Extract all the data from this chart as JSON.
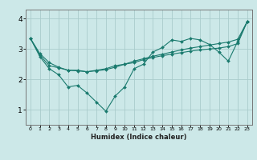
{
  "title": "",
  "xlabel": "Humidex (Indice chaleur)",
  "bg_color": "#cce8e8",
  "line_color": "#1a7a6e",
  "grid_color": "#aacccc",
  "x_data": [
    0,
    1,
    2,
    3,
    4,
    5,
    6,
    7,
    8,
    9,
    10,
    11,
    12,
    13,
    14,
    15,
    16,
    17,
    18,
    19,
    20,
    21,
    22,
    23
  ],
  "line1": [
    3.35,
    2.75,
    2.35,
    2.15,
    1.75,
    1.8,
    1.55,
    1.25,
    0.95,
    1.45,
    1.75,
    2.35,
    2.5,
    2.9,
    3.05,
    3.3,
    3.25,
    3.35,
    3.3,
    3.15,
    2.9,
    2.6,
    3.25,
    3.9
  ],
  "line2": [
    3.35,
    2.85,
    2.55,
    2.4,
    2.3,
    2.3,
    2.25,
    2.3,
    2.35,
    2.45,
    2.5,
    2.55,
    2.65,
    2.72,
    2.78,
    2.83,
    2.88,
    2.93,
    2.97,
    3.0,
    3.03,
    3.08,
    3.18,
    3.9
  ],
  "line3": [
    3.35,
    2.8,
    2.45,
    2.38,
    2.3,
    2.28,
    2.25,
    2.28,
    2.32,
    2.4,
    2.5,
    2.6,
    2.68,
    2.76,
    2.83,
    2.9,
    2.97,
    3.03,
    3.08,
    3.13,
    3.18,
    3.23,
    3.32,
    3.9
  ],
  "xlim": [
    -0.5,
    23.5
  ],
  "ylim": [
    0.5,
    4.3
  ],
  "yticks": [
    1,
    2,
    3,
    4
  ],
  "xticks": [
    0,
    1,
    2,
    3,
    4,
    5,
    6,
    7,
    8,
    9,
    10,
    11,
    12,
    13,
    14,
    15,
    16,
    17,
    18,
    19,
    20,
    21,
    22,
    23
  ]
}
